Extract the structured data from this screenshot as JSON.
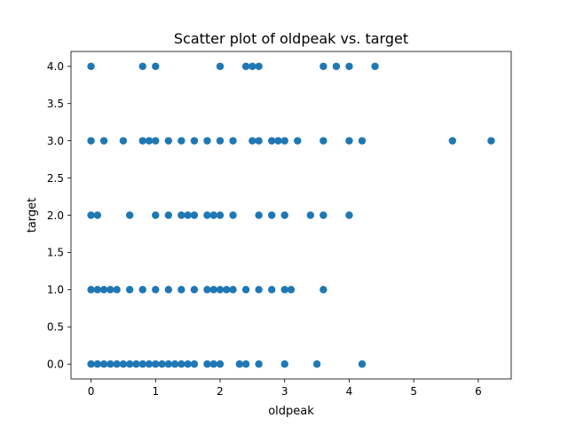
{
  "chart_data": {
    "type": "scatter",
    "title": "Scatter plot of oldpeak vs. target",
    "xlabel": "oldpeak",
    "ylabel": "target",
    "xlim": [
      -0.31,
      6.51
    ],
    "ylim": [
      -0.2,
      4.2
    ],
    "xticks": [
      "0",
      "1",
      "2",
      "3",
      "4",
      "5",
      "6"
    ],
    "yticks": [
      "0.0",
      "0.5",
      "1.0",
      "1.5",
      "2.0",
      "2.5",
      "3.0",
      "3.5",
      "4.0"
    ],
    "grid": false,
    "marker_color": "#1f77b4",
    "points": [
      [
        0.0,
        4
      ],
      [
        0.8,
        4
      ],
      [
        1.0,
        4
      ],
      [
        2.0,
        4
      ],
      [
        2.4,
        4
      ],
      [
        2.5,
        4
      ],
      [
        2.6,
        4
      ],
      [
        3.6,
        4
      ],
      [
        3.8,
        4
      ],
      [
        4.0,
        4
      ],
      [
        4.4,
        4
      ],
      [
        0.0,
        3
      ],
      [
        0.2,
        3
      ],
      [
        0.5,
        3
      ],
      [
        0.8,
        3
      ],
      [
        0.9,
        3
      ],
      [
        1.0,
        3
      ],
      [
        1.2,
        3
      ],
      [
        1.4,
        3
      ],
      [
        1.6,
        3
      ],
      [
        1.8,
        3
      ],
      [
        2.0,
        3
      ],
      [
        2.2,
        3
      ],
      [
        2.5,
        3
      ],
      [
        2.6,
        3
      ],
      [
        2.8,
        3
      ],
      [
        2.9,
        3
      ],
      [
        3.0,
        3
      ],
      [
        3.2,
        3
      ],
      [
        3.6,
        3
      ],
      [
        4.0,
        3
      ],
      [
        4.2,
        3
      ],
      [
        5.6,
        3
      ],
      [
        6.2,
        3
      ],
      [
        0.0,
        2
      ],
      [
        0.1,
        2
      ],
      [
        0.6,
        2
      ],
      [
        1.0,
        2
      ],
      [
        1.2,
        2
      ],
      [
        1.4,
        2
      ],
      [
        1.5,
        2
      ],
      [
        1.6,
        2
      ],
      [
        1.8,
        2
      ],
      [
        1.9,
        2
      ],
      [
        2.0,
        2
      ],
      [
        2.2,
        2
      ],
      [
        2.6,
        2
      ],
      [
        2.8,
        2
      ],
      [
        3.0,
        2
      ],
      [
        3.4,
        2
      ],
      [
        3.6,
        2
      ],
      [
        4.0,
        2
      ],
      [
        0.0,
        1
      ],
      [
        0.1,
        1
      ],
      [
        0.2,
        1
      ],
      [
        0.3,
        1
      ],
      [
        0.4,
        1
      ],
      [
        0.6,
        1
      ],
      [
        0.8,
        1
      ],
      [
        1.0,
        1
      ],
      [
        1.2,
        1
      ],
      [
        1.4,
        1
      ],
      [
        1.6,
        1
      ],
      [
        1.8,
        1
      ],
      [
        1.9,
        1
      ],
      [
        2.0,
        1
      ],
      [
        2.1,
        1
      ],
      [
        2.2,
        1
      ],
      [
        2.4,
        1
      ],
      [
        2.6,
        1
      ],
      [
        2.8,
        1
      ],
      [
        3.0,
        1
      ],
      [
        3.1,
        1
      ],
      [
        3.6,
        1
      ],
      [
        0.0,
        0
      ],
      [
        0.1,
        0
      ],
      [
        0.2,
        0
      ],
      [
        0.3,
        0
      ],
      [
        0.4,
        0
      ],
      [
        0.5,
        0
      ],
      [
        0.6,
        0
      ],
      [
        0.7,
        0
      ],
      [
        0.8,
        0
      ],
      [
        0.9,
        0
      ],
      [
        1.0,
        0
      ],
      [
        1.1,
        0
      ],
      [
        1.2,
        0
      ],
      [
        1.3,
        0
      ],
      [
        1.4,
        0
      ],
      [
        1.5,
        0
      ],
      [
        1.6,
        0
      ],
      [
        1.8,
        0
      ],
      [
        1.9,
        0
      ],
      [
        2.0,
        0
      ],
      [
        2.3,
        0
      ],
      [
        2.4,
        0
      ],
      [
        2.6,
        0
      ],
      [
        3.0,
        0
      ],
      [
        3.5,
        0
      ],
      [
        4.2,
        0
      ]
    ]
  }
}
